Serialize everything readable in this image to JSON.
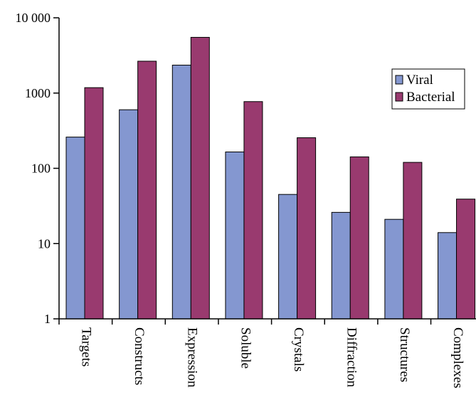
{
  "chart_data": {
    "type": "bar",
    "title": "",
    "xlabel": "",
    "ylabel": "",
    "yscale": "log",
    "ylim": [
      1,
      10000
    ],
    "yticks": [
      1,
      10,
      100,
      1000,
      10000
    ],
    "ytick_labels": [
      "1",
      "10",
      "100",
      "1000",
      "10 000"
    ],
    "grid": false,
    "legend_position": "right",
    "categories": [
      "Targets",
      "Constructs",
      "Expression",
      "Soluble",
      "Crystals",
      "Diffraction",
      "Structures",
      "Complexes"
    ],
    "series": [
      {
        "name": "Viral",
        "color": "#8497d0",
        "values": [
          260,
          600,
          2350,
          165,
          45,
          26,
          21,
          14
        ]
      },
      {
        "name": "Bacterial",
        "color": "#993a6f",
        "values": [
          1180,
          2650,
          5500,
          770,
          255,
          142,
          120,
          39
        ]
      }
    ]
  }
}
